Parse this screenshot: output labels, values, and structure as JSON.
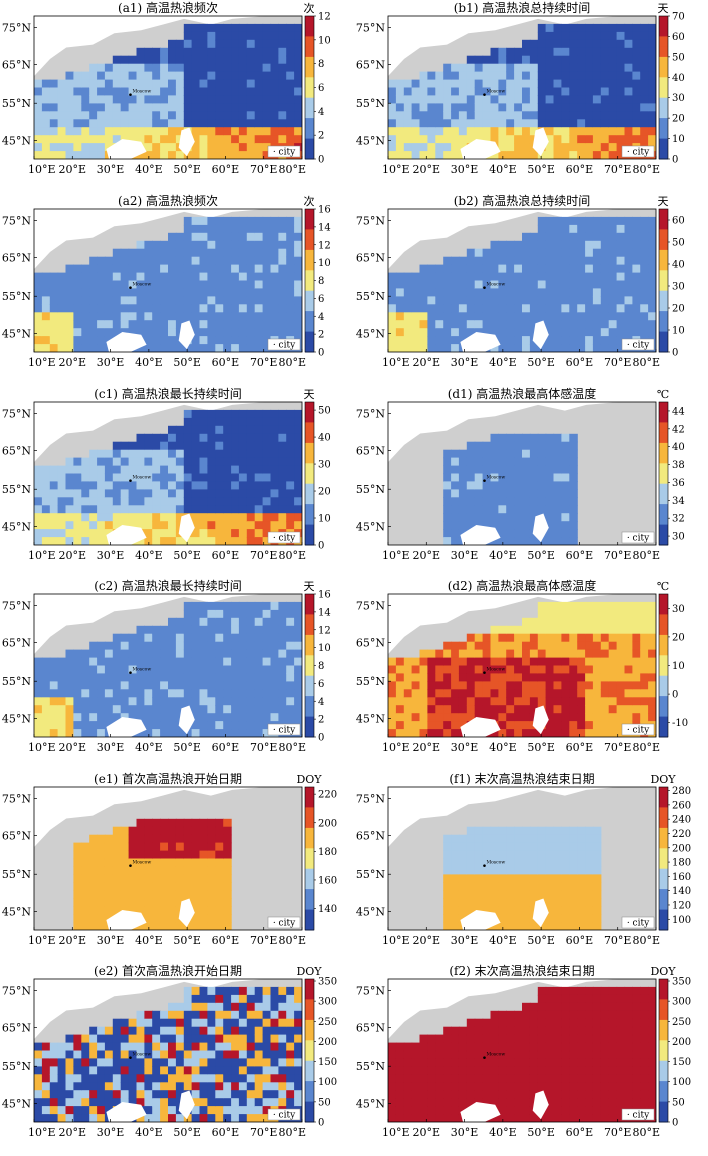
{
  "figure": {
    "lat_labels": [
      "75°N",
      "65°N",
      "55°N",
      "45°N"
    ],
    "lon_labels": [
      "10°E",
      "20°E",
      "30°E",
      "40°E",
      "50°E",
      "60°E",
      "70°E",
      "80°E"
    ],
    "city_legend": "· city",
    "city_marker_label": "Moscow"
  },
  "colorscale": [
    "#2b4aa6",
    "#5a86cf",
    "#a9cbe8",
    "#f2ea7e",
    "#f7b63c",
    "#e65527",
    "#b5162a"
  ],
  "chart_data": [
    {
      "id": "a1",
      "type": "heatmap",
      "title": "(a1) 高温热浪频次",
      "unit": "次",
      "cbar_ticks": [
        0,
        2,
        4,
        6,
        8,
        10,
        12
      ],
      "cbar_range": [
        0,
        12
      ],
      "land_mask": "dark"
    },
    {
      "id": "b1",
      "type": "heatmap",
      "title": "(b1) 高温热浪总持续时间",
      "unit": "天",
      "cbar_ticks": [
        0,
        10,
        20,
        30,
        40,
        50,
        60,
        70
      ],
      "cbar_range": [
        0,
        70
      ],
      "land_mask": "dark"
    },
    {
      "id": "a2",
      "type": "heatmap",
      "title": "(a2) 高温热浪频次",
      "unit": "次",
      "cbar_ticks": [
        0,
        2,
        4,
        6,
        8,
        10,
        12,
        14,
        16
      ],
      "cbar_range": [
        0,
        16
      ],
      "land_mask": "light"
    },
    {
      "id": "b2",
      "type": "heatmap",
      "title": "(b2) 高温热浪总持续时间",
      "unit": "天",
      "cbar_ticks": [
        0,
        10,
        20,
        30,
        40,
        50,
        60
      ],
      "cbar_range": [
        0,
        65
      ],
      "land_mask": "light"
    },
    {
      "id": "c1",
      "type": "heatmap",
      "title": "(c1) 高温热浪最长持续时间",
      "unit": "天",
      "cbar_ticks": [
        0,
        10,
        20,
        30,
        40,
        50
      ],
      "cbar_range": [
        0,
        53
      ],
      "land_mask": "dark"
    },
    {
      "id": "d1",
      "type": "heatmap",
      "title": "(d1) 高温热浪最高体感温度",
      "unit": "℃",
      "cbar_ticks": [
        30,
        32,
        34,
        36,
        38,
        40,
        42,
        44
      ],
      "cbar_range": [
        29,
        45
      ],
      "land_mask": "blue"
    },
    {
      "id": "c2",
      "type": "heatmap",
      "title": "(c2) 高温热浪最长持续时间",
      "unit": "天",
      "cbar_ticks": [
        0,
        2,
        4,
        6,
        8,
        10,
        12,
        14,
        16
      ],
      "cbar_range": [
        0,
        16
      ],
      "land_mask": "light"
    },
    {
      "id": "d2",
      "type": "heatmap",
      "title": "(d2) 高温热浪最高体感温度",
      "unit": "℃",
      "cbar_ticks": [
        -10,
        0,
        10,
        20,
        30
      ],
      "cbar_range": [
        -15,
        35
      ],
      "land_mask": "hot"
    },
    {
      "id": "e1",
      "type": "heatmap",
      "title": "(e1) 首次高温热浪开始日期",
      "unit": "DOY",
      "cbar_ticks": [
        140,
        160,
        180,
        200,
        220
      ],
      "cbar_range": [
        125,
        225
      ],
      "land_mask": "warm"
    },
    {
      "id": "f1",
      "type": "heatmap",
      "title": "(f1) 末次高温热浪结束日期",
      "unit": "DOY",
      "cbar_ticks": [
        100,
        120,
        140,
        160,
        180,
        200,
        220,
        240,
        260,
        280
      ],
      "cbar_range": [
        85,
        285
      ],
      "land_mask": "warmlight"
    },
    {
      "id": "e2",
      "type": "heatmap",
      "title": "(e2) 首次高温热浪开始日期",
      "unit": "DOY",
      "cbar_ticks": [
        0,
        50,
        100,
        150,
        200,
        250,
        300,
        350
      ],
      "cbar_range": [
        0,
        355
      ],
      "land_mask": "mixed"
    },
    {
      "id": "f2",
      "type": "heatmap",
      "title": "(f2) 末次高温热浪结束日期",
      "unit": "DOY",
      "cbar_ticks": [
        0,
        50,
        100,
        150,
        200,
        250,
        300,
        350
      ],
      "cbar_range": [
        0,
        355
      ],
      "land_mask": "red"
    }
  ]
}
